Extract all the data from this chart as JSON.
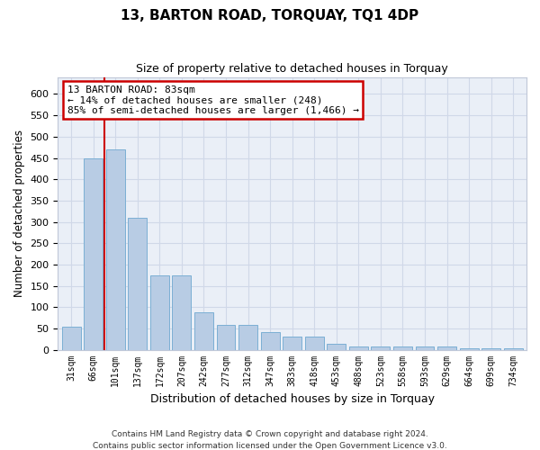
{
  "title": "13, BARTON ROAD, TORQUAY, TQ1 4DP",
  "subtitle": "Size of property relative to detached houses in Torquay",
  "xlabel": "Distribution of detached houses by size in Torquay",
  "ylabel": "Number of detached properties",
  "categories": [
    "31sqm",
    "66sqm",
    "101sqm",
    "137sqm",
    "172sqm",
    "207sqm",
    "242sqm",
    "277sqm",
    "312sqm",
    "347sqm",
    "383sqm",
    "418sqm",
    "453sqm",
    "488sqm",
    "523sqm",
    "558sqm",
    "593sqm",
    "629sqm",
    "664sqm",
    "699sqm",
    "734sqm"
  ],
  "values": [
    54,
    450,
    470,
    310,
    175,
    175,
    88,
    58,
    58,
    42,
    30,
    30,
    14,
    8,
    8,
    8,
    7,
    7,
    3,
    3,
    3
  ],
  "bar_color": "#b8cce4",
  "bar_edge_color": "#7bafd4",
  "grid_color": "#d0d8e8",
  "background_color": "#eaeff7",
  "property_line_x": 1.5,
  "annotation_text": "13 BARTON ROAD: 83sqm\n← 14% of detached houses are smaller (248)\n85% of semi-detached houses are larger (1,466) →",
  "annotation_box_color": "#ffffff",
  "annotation_box_edge": "#cc0000",
  "property_line_color": "#cc0000",
  "ylim": [
    0,
    640
  ],
  "yticks": [
    0,
    50,
    100,
    150,
    200,
    250,
    300,
    350,
    400,
    450,
    500,
    550,
    600
  ],
  "footer_line1": "Contains HM Land Registry data © Crown copyright and database right 2024.",
  "footer_line2": "Contains public sector information licensed under the Open Government Licence v3.0."
}
